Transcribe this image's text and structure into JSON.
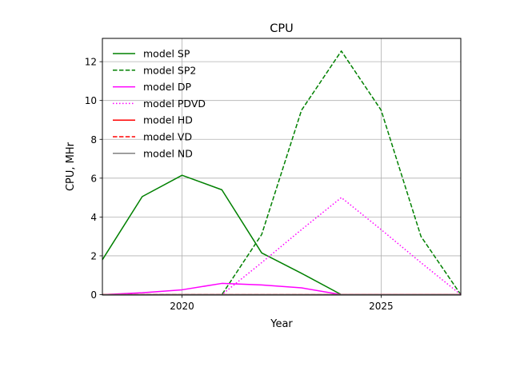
{
  "chart_data": {
    "type": "line",
    "title": "CPU",
    "xlabel": "Year",
    "ylabel": "CPU, MHr",
    "xlim": [
      2018,
      2027
    ],
    "ylim": [
      -0.02,
      13.2
    ],
    "grid": true,
    "legend_position": "upper-left",
    "x_ticks": [
      {
        "value": 2020,
        "label": "2020"
      },
      {
        "value": 2025,
        "label": "2025"
      }
    ],
    "y_ticks": [
      {
        "value": 0,
        "label": "0"
      },
      {
        "value": 2,
        "label": "2"
      },
      {
        "value": 4,
        "label": "4"
      },
      {
        "value": 6,
        "label": "6"
      },
      {
        "value": 8,
        "label": "8"
      },
      {
        "value": 10,
        "label": "10"
      },
      {
        "value": 12,
        "label": "12"
      }
    ],
    "x": [
      2018,
      2019,
      2020,
      2021,
      2022,
      2023,
      2024,
      2025,
      2026,
      2027
    ],
    "series": [
      {
        "name": "model SP",
        "color": "#008000",
        "dash": "solid",
        "values": [
          1.8,
          5.05,
          6.15,
          5.4,
          2.15,
          1.1,
          0,
          0,
          0,
          0
        ]
      },
      {
        "name": "model SP2",
        "color": "#008000",
        "dash": "dashed",
        "values": [
          0,
          0,
          0,
          0,
          3.1,
          9.5,
          12.55,
          9.5,
          3.0,
          0
        ]
      },
      {
        "name": "model DP",
        "color": "#ff00ff",
        "dash": "solid",
        "values": [
          0,
          0.1,
          0.25,
          0.58,
          0.5,
          0.35,
          0,
          0,
          0,
          0
        ]
      },
      {
        "name": "model PDVD",
        "color": "#ff00ff",
        "dash": "dotted",
        "values": [
          0,
          0,
          0,
          0,
          1.65,
          3.35,
          5.0,
          3.35,
          1.65,
          0
        ]
      },
      {
        "name": "model HD",
        "color": "#ff0000",
        "dash": "solid",
        "values": [
          0,
          0,
          0,
          0,
          0,
          0,
          0,
          0,
          0,
          0
        ]
      },
      {
        "name": "model VD",
        "color": "#ff0000",
        "dash": "dashed",
        "values": [
          0,
          0,
          0,
          0,
          0,
          0,
          0,
          0,
          0,
          0
        ]
      },
      {
        "name": "model ND",
        "color": "#808080",
        "dash": "solid",
        "values": [
          0,
          0,
          0,
          0,
          0,
          0,
          0,
          0,
          0,
          0
        ]
      }
    ]
  }
}
